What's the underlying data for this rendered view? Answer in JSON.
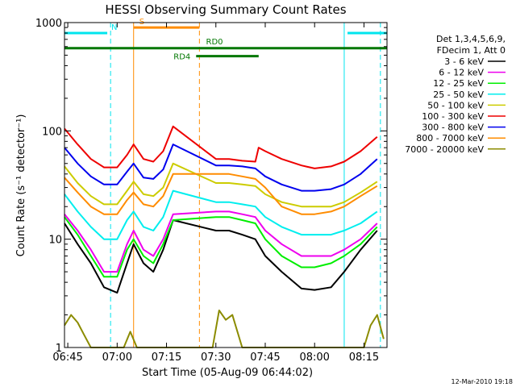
{
  "chart_data": {
    "type": "line",
    "title": "HESSI Observing Summary Count Rates",
    "xlabel": "Start Time (05-Aug-09 06:44:02)",
    "ylabel": "Count Rate (s⁻¹ detector⁻¹)",
    "y_scale": "log",
    "ylim": [
      1,
      1000
    ],
    "x_range": [
      "06:44",
      "08:22"
    ],
    "x_ticks": [
      "06:45",
      "07:00",
      "07:15",
      "07:30",
      "07:45",
      "08:00",
      "08:15"
    ],
    "y_ticks": [
      "1",
      "10",
      "100",
      "1000"
    ],
    "grid": false,
    "legend_position": "right",
    "legend_header": [
      "Det 1,3,4,5,6,9,",
      "FDecim 1, Att 0"
    ],
    "timestamp": "12-Mar-2010 19:18",
    "annotations": {
      "flags": [
        {
          "label": "N",
          "color": "#00e5ee",
          "segments": [
            [
              "06:44",
              "06:57"
            ],
            [
              "08:10",
              "08:22"
            ]
          ],
          "y": 800
        },
        {
          "label": "S",
          "color": "#ff8c00",
          "segments": [
            [
              "07:05",
              "07:25"
            ]
          ],
          "y": 900
        },
        {
          "label": "RD0",
          "color": "#007700",
          "segments": [
            [
              "06:44",
              "08:22"
            ]
          ],
          "y": 580
        },
        {
          "label": "RD4",
          "color": "#007700",
          "segments": [
            [
              "07:24",
              "07:43"
            ]
          ],
          "y": 490
        }
      ],
      "vertical_lines": [
        {
          "time": "06:44",
          "color": "#00e5ee",
          "style": "solid"
        },
        {
          "time": "06:58",
          "color": "#00e5ee",
          "style": "dashed"
        },
        {
          "time": "07:05",
          "color": "#ff8c00",
          "style": "solid"
        },
        {
          "time": "07:25",
          "color": "#ff8c00",
          "style": "dashed"
        },
        {
          "time": "08:09",
          "color": "#00e5ee",
          "style": "solid"
        },
        {
          "time": "08:20",
          "color": "#00e5ee",
          "style": "dashed"
        }
      ]
    },
    "series": [
      {
        "name": "3 - 6 keV",
        "color": "#000000",
        "points": [
          [
            "06:44",
            14
          ],
          [
            "06:48",
            9
          ],
          [
            "06:52",
            6
          ],
          [
            "06:56",
            3.6
          ],
          [
            "07:00",
            3.2
          ],
          [
            "07:03",
            6
          ],
          [
            "07:05",
            9
          ],
          [
            "07:08",
            6
          ],
          [
            "07:11",
            5
          ],
          [
            "07:14",
            8
          ],
          [
            "07:17",
            15
          ],
          [
            "07:30",
            12
          ],
          [
            "07:34",
            12
          ],
          [
            "07:38",
            11
          ],
          [
            "07:42",
            10
          ],
          [
            "07:45",
            7
          ],
          [
            "07:50",
            5
          ],
          [
            "07:56",
            3.5
          ],
          [
            "08:00",
            3.4
          ],
          [
            "08:05",
            3.6
          ],
          [
            "08:09",
            5
          ],
          [
            "08:14",
            8
          ],
          [
            "08:19",
            12
          ]
        ]
      },
      {
        "name": "6 - 12 keV",
        "color": "#ee00ee",
        "points": [
          [
            "06:44",
            17
          ],
          [
            "06:48",
            12
          ],
          [
            "06:52",
            8
          ],
          [
            "06:56",
            5
          ],
          [
            "07:00",
            5
          ],
          [
            "07:03",
            9
          ],
          [
            "07:05",
            12
          ],
          [
            "07:08",
            8
          ],
          [
            "07:11",
            7
          ],
          [
            "07:14",
            10
          ],
          [
            "07:17",
            17
          ],
          [
            "07:30",
            18
          ],
          [
            "07:34",
            18
          ],
          [
            "07:38",
            17
          ],
          [
            "07:42",
            16
          ],
          [
            "07:45",
            12
          ],
          [
            "07:50",
            9
          ],
          [
            "07:56",
            7
          ],
          [
            "08:00",
            7
          ],
          [
            "08:05",
            7
          ],
          [
            "08:09",
            8
          ],
          [
            "08:14",
            10
          ],
          [
            "08:19",
            14
          ]
        ]
      },
      {
        "name": "12 - 25 keV",
        "color": "#00ee00",
        "points": [
          [
            "06:44",
            16
          ],
          [
            "06:48",
            11
          ],
          [
            "06:52",
            7
          ],
          [
            "06:56",
            4.5
          ],
          [
            "07:00",
            4.5
          ],
          [
            "07:03",
            8
          ],
          [
            "07:05",
            10
          ],
          [
            "07:08",
            7
          ],
          [
            "07:11",
            6
          ],
          [
            "07:14",
            9
          ],
          [
            "07:17",
            15
          ],
          [
            "07:30",
            16
          ],
          [
            "07:34",
            16
          ],
          [
            "07:38",
            15
          ],
          [
            "07:42",
            14
          ],
          [
            "07:45",
            10
          ],
          [
            "07:50",
            7
          ],
          [
            "07:56",
            5.5
          ],
          [
            "08:00",
            5.5
          ],
          [
            "08:05",
            6
          ],
          [
            "08:09",
            7
          ],
          [
            "08:14",
            9
          ],
          [
            "08:19",
            13
          ]
        ]
      },
      {
        "name": "25 - 50 keV",
        "color": "#00eeee",
        "points": [
          [
            "06:44",
            26
          ],
          [
            "06:48",
            18
          ],
          [
            "06:52",
            13
          ],
          [
            "06:56",
            10
          ],
          [
            "07:00",
            10
          ],
          [
            "07:03",
            15
          ],
          [
            "07:05",
            18
          ],
          [
            "07:08",
            13
          ],
          [
            "07:11",
            12
          ],
          [
            "07:14",
            16
          ],
          [
            "07:17",
            28
          ],
          [
            "07:30",
            22
          ],
          [
            "07:34",
            22
          ],
          [
            "07:38",
            21
          ],
          [
            "07:42",
            20
          ],
          [
            "07:45",
            16
          ],
          [
            "07:50",
            13
          ],
          [
            "07:56",
            11
          ],
          [
            "08:00",
            11
          ],
          [
            "08:05",
            11
          ],
          [
            "08:09",
            12
          ],
          [
            "08:14",
            14
          ],
          [
            "08:19",
            18
          ]
        ]
      },
      {
        "name": "50 - 100 keV",
        "color": "#cccc00",
        "points": [
          [
            "06:44",
            47
          ],
          [
            "06:48",
            33
          ],
          [
            "06:52",
            25
          ],
          [
            "06:56",
            21
          ],
          [
            "07:00",
            21
          ],
          [
            "07:03",
            28
          ],
          [
            "07:05",
            34
          ],
          [
            "07:08",
            26
          ],
          [
            "07:11",
            25
          ],
          [
            "07:14",
            30
          ],
          [
            "07:17",
            50
          ],
          [
            "07:30",
            33
          ],
          [
            "07:34",
            33
          ],
          [
            "07:38",
            32
          ],
          [
            "07:42",
            31
          ],
          [
            "07:45",
            26
          ],
          [
            "07:50",
            22
          ],
          [
            "07:56",
            20
          ],
          [
            "08:00",
            20
          ],
          [
            "08:05",
            20
          ],
          [
            "08:09",
            22
          ],
          [
            "08:14",
            27
          ],
          [
            "08:19",
            34
          ]
        ]
      },
      {
        "name": "100 - 300 keV",
        "color": "#ee0000",
        "points": [
          [
            "06:44",
            105
          ],
          [
            "06:48",
            75
          ],
          [
            "06:52",
            55
          ],
          [
            "06:56",
            46
          ],
          [
            "07:00",
            46
          ],
          [
            "07:03",
            60
          ],
          [
            "07:05",
            75
          ],
          [
            "07:08",
            55
          ],
          [
            "07:11",
            52
          ],
          [
            "07:14",
            65
          ],
          [
            "07:17",
            110
          ],
          [
            "07:30",
            55
          ],
          [
            "07:34",
            55
          ],
          [
            "07:38",
            53
          ],
          [
            "07:42",
            52
          ],
          [
            "07:43",
            70
          ],
          [
            "07:45",
            65
          ],
          [
            "07:50",
            55
          ],
          [
            "07:56",
            48
          ],
          [
            "08:00",
            45
          ],
          [
            "08:05",
            47
          ],
          [
            "08:09",
            52
          ],
          [
            "08:14",
            65
          ],
          [
            "08:19",
            88
          ]
        ]
      },
      {
        "name": "300 - 800 keV",
        "color": "#0000ee",
        "points": [
          [
            "06:44",
            70
          ],
          [
            "06:48",
            50
          ],
          [
            "06:52",
            38
          ],
          [
            "06:56",
            32
          ],
          [
            "07:00",
            32
          ],
          [
            "07:03",
            42
          ],
          [
            "07:05",
            50
          ],
          [
            "07:08",
            37
          ],
          [
            "07:11",
            36
          ],
          [
            "07:14",
            44
          ],
          [
            "07:17",
            75
          ],
          [
            "07:30",
            48
          ],
          [
            "07:34",
            48
          ],
          [
            "07:38",
            47
          ],
          [
            "07:42",
            45
          ],
          [
            "07:45",
            38
          ],
          [
            "07:50",
            32
          ],
          [
            "07:56",
            28
          ],
          [
            "08:00",
            28
          ],
          [
            "08:05",
            29
          ],
          [
            "08:09",
            32
          ],
          [
            "08:14",
            40
          ],
          [
            "08:19",
            55
          ]
        ]
      },
      {
        "name": "800 - 7000 keV",
        "color": "#ff8c00",
        "points": [
          [
            "06:44",
            37
          ],
          [
            "06:48",
            27
          ],
          [
            "06:52",
            20
          ],
          [
            "06:56",
            17
          ],
          [
            "07:00",
            17
          ],
          [
            "07:03",
            23
          ],
          [
            "07:05",
            27
          ],
          [
            "07:08",
            21
          ],
          [
            "07:11",
            20
          ],
          [
            "07:14",
            25
          ],
          [
            "07:17",
            40
          ],
          [
            "07:30",
            40
          ],
          [
            "07:34",
            40
          ],
          [
            "07:38",
            38
          ],
          [
            "07:42",
            36
          ],
          [
            "07:45",
            30
          ],
          [
            "07:50",
            20
          ],
          [
            "07:56",
            17
          ],
          [
            "08:00",
            17
          ],
          [
            "08:05",
            18
          ],
          [
            "08:09",
            20
          ],
          [
            "08:14",
            25
          ],
          [
            "08:19",
            31
          ]
        ]
      },
      {
        "name": "7000 - 20000 keV",
        "color": "#8b8b00",
        "points": [
          [
            "06:44",
            1.6
          ],
          [
            "06:46",
            2.0
          ],
          [
            "06:48",
            1.7
          ],
          [
            "06:50",
            1.3
          ],
          [
            "06:52",
            1.0
          ],
          [
            "07:02",
            1.0
          ],
          [
            "07:04",
            1.4
          ],
          [
            "07:06",
            1.0
          ],
          [
            "07:29",
            1.0
          ],
          [
            "07:31",
            2.2
          ],
          [
            "07:33",
            1.8
          ],
          [
            "07:35",
            2.0
          ],
          [
            "07:38",
            1.0
          ],
          [
            "08:15",
            1.0
          ],
          [
            "08:17",
            1.6
          ],
          [
            "08:19",
            2.0
          ],
          [
            "08:21",
            1.2
          ]
        ]
      }
    ]
  }
}
